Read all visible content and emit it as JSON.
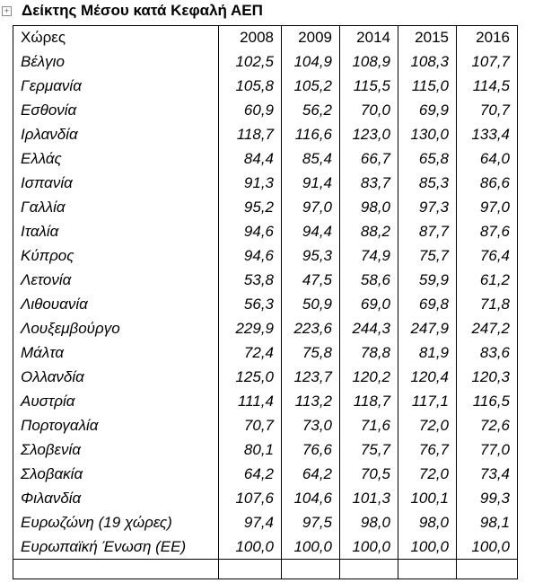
{
  "title": "Δείκτης Μέσου κατά Κεφαλή ΑΕΠ",
  "table": {
    "header": [
      "Χώρες",
      "2008",
      "2009",
      "2014",
      "2015",
      "2016"
    ],
    "rows": [
      [
        "Βέλγιο",
        "102,5",
        "104,9",
        "108,9",
        "108,3",
        "107,7"
      ],
      [
        "Γερμανία",
        "105,8",
        "105,2",
        "115,5",
        "115,0",
        "114,5"
      ],
      [
        "Εσθονία",
        "60,9",
        "56,2",
        "70,0",
        "69,9",
        "70,7"
      ],
      [
        "Ιρλανδία",
        "118,7",
        "116,6",
        "123,0",
        "130,0",
        "133,4"
      ],
      [
        "Ελλάς",
        "84,4",
        "85,4",
        "66,7",
        "65,8",
        "64,0"
      ],
      [
        "Ισπανία",
        "91,3",
        "91,4",
        "83,7",
        "85,3",
        "86,6"
      ],
      [
        "Γαλλία",
        "95,2",
        "97,0",
        "98,0",
        "97,3",
        "97,0"
      ],
      [
        "Ιταλία",
        "94,6",
        "94,4",
        "88,2",
        "87,7",
        "87,6"
      ],
      [
        "Κύπρος",
        "94,6",
        "95,3",
        "74,9",
        "75,7",
        "76,4"
      ],
      [
        "Λετονία",
        "53,8",
        "47,5",
        "58,6",
        "59,9",
        "61,2"
      ],
      [
        "Λιθουανία",
        "56,3",
        "50,9",
        "69,0",
        "69,8",
        "71,8"
      ],
      [
        "Λουξεμβούργο",
        "229,9",
        "223,6",
        "244,3",
        "247,9",
        "247,2"
      ],
      [
        "Μάλτα",
        "72,4",
        "75,8",
        "78,8",
        "81,9",
        "83,6"
      ],
      [
        "Ολλανδία",
        "125,0",
        "123,7",
        "120,2",
        "120,4",
        "120,3"
      ],
      [
        "Αυστρία",
        "111,4",
        "113,2",
        "118,7",
        "117,1",
        "116,5"
      ],
      [
        "Πορτογαλία",
        "70,7",
        "73,0",
        "71,6",
        "72,0",
        "72,6"
      ],
      [
        "Σλοβενία",
        "80,1",
        "76,6",
        "75,7",
        "76,7",
        "77,0"
      ],
      [
        "Σλοβακία",
        "64,2",
        "64,2",
        "70,5",
        "72,0",
        "73,4"
      ],
      [
        "Φιλανδία",
        "107,6",
        "104,6",
        "101,3",
        "100,1",
        "99,3"
      ],
      [
        "Ευρωζώνη (19 χώρες)",
        "97,4",
        "97,5",
        "98,0",
        "98,0",
        "98,1"
      ],
      [
        "Ευρωπαϊκή Ένωση (ΕΕ)",
        "100,0",
        "100,0",
        "100,0",
        "100,0",
        "100,0"
      ]
    ]
  }
}
